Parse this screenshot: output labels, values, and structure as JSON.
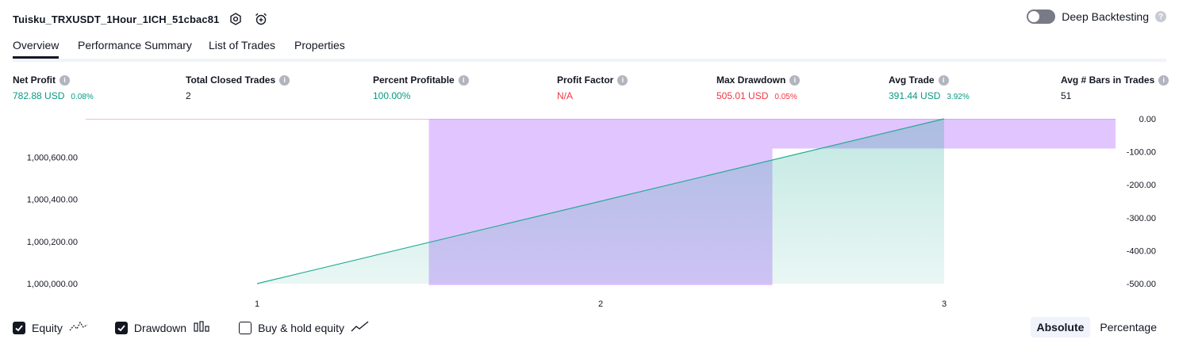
{
  "header": {
    "title": "Tuisku_TRXUSDT_1Hour_1ICH_51cbac81",
    "deep_backtesting_label": "Deep Backtesting",
    "deep_backtesting_enabled": false
  },
  "tabs": [
    {
      "label": "Overview",
      "active": true
    },
    {
      "label": "Performance Summary",
      "active": false
    },
    {
      "label": "List of Trades",
      "active": false
    },
    {
      "label": "Properties",
      "active": false
    }
  ],
  "stats": [
    {
      "label": "Net Profit",
      "value": "782.88 USD",
      "sub": "0.08%",
      "color": "green"
    },
    {
      "label": "Total Closed Trades",
      "value": "2",
      "sub": "",
      "color": "dark"
    },
    {
      "label": "Percent Profitable",
      "value": "100.00%",
      "sub": "",
      "color": "green"
    },
    {
      "label": "Profit Factor",
      "value": "N/A",
      "sub": "",
      "color": "red"
    },
    {
      "label": "Max Drawdown",
      "value": "505.01 USD",
      "sub": "0.05%",
      "color": "red"
    },
    {
      "label": "Avg Trade",
      "value": "391.44 USD",
      "sub": "3.92%",
      "color": "green"
    },
    {
      "label": "Avg # Bars in Trades",
      "value": "51",
      "sub": "",
      "color": "dark"
    }
  ],
  "chart_data": {
    "type": "line",
    "x": [
      1,
      2,
      3
    ],
    "x_tick_labels": [
      "1",
      "2",
      "3"
    ],
    "series": [
      {
        "name": "Equity",
        "type": "area",
        "values": [
          1000000.0,
          1000391.44,
          1000782.88
        ],
        "color": "#22ab94"
      },
      {
        "name": "Drawdown",
        "type": "bar",
        "values": [
          0.0,
          -505.01,
          -90.0
        ],
        "color": "#c38bff"
      }
    ],
    "y_left": {
      "ticks": [
        "1,000,000.00",
        "1,000,200.00",
        "1,000,400.00",
        "1,000,600.00"
      ],
      "range": [
        1000000.0,
        1000782.88
      ]
    },
    "y_right": {
      "ticks": [
        "0.00",
        "-100.00",
        "-200.00",
        "-300.00",
        "-400.00",
        "-500.00"
      ],
      "range": [
        -505.01,
        0.0
      ]
    }
  },
  "legend": [
    {
      "label": "Equity",
      "checked": true,
      "icon": "equity-line-icon"
    },
    {
      "label": "Drawdown",
      "checked": true,
      "icon": "drawdown-bars-icon"
    },
    {
      "label": "Buy & hold equity",
      "checked": false,
      "icon": "buy-hold-line-icon"
    }
  ],
  "modes": [
    {
      "label": "Absolute",
      "active": true
    },
    {
      "label": "Percentage",
      "active": false
    }
  ]
}
